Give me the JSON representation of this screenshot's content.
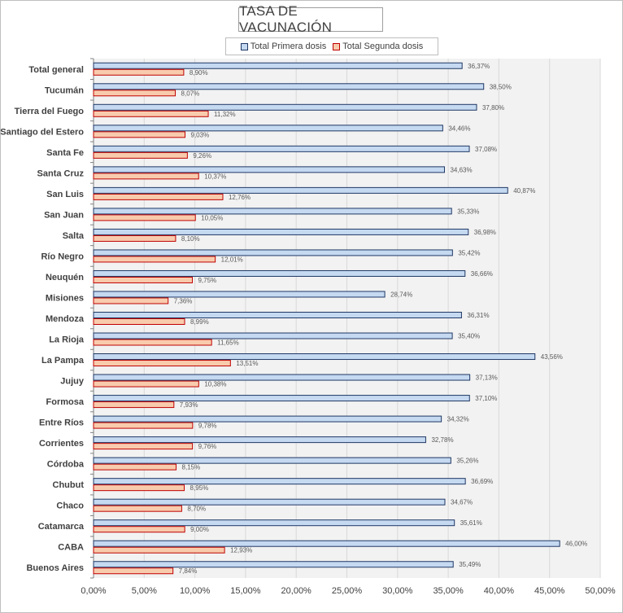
{
  "chart_data": {
    "type": "bar",
    "orientation": "horizontal",
    "title": "TASA DE VACUNACIÓN",
    "categories": [
      "Total general",
      "Tucumán",
      "Tierra del Fuego",
      "Santiago del Estero",
      "Santa Fe",
      "Santa Cruz",
      "San Luis",
      "San Juan",
      "Salta",
      "Río Negro",
      "Neuquén",
      "Misiones",
      "Mendoza",
      "La Rioja",
      "La Pampa",
      "Jujuy",
      "Formosa",
      "Entre Ríos",
      "Corrientes",
      "Córdoba",
      "Chubut",
      "Chaco",
      "Catamarca",
      "CABA",
      "Buenos Aires"
    ],
    "series": [
      {
        "name": "Total Primera dosis",
        "color": "#c5d9f1",
        "border": "#1f3864",
        "values": [
          36.37,
          38.5,
          37.8,
          34.46,
          37.08,
          34.63,
          40.87,
          35.33,
          36.98,
          35.42,
          36.66,
          28.74,
          36.31,
          35.4,
          43.56,
          37.13,
          37.1,
          34.32,
          32.78,
          35.26,
          36.69,
          34.67,
          35.61,
          46.0,
          35.49
        ],
        "labels": [
          "36,37%",
          "38,50%",
          "37,80%",
          "34,46%",
          "37,08%",
          "34,63%",
          "40,87%",
          "35,33%",
          "36,98%",
          "35,42%",
          "36,66%",
          "28,74%",
          "36,31%",
          "35,40%",
          "43,56%",
          "37,13%",
          "37,10%",
          "34,32%",
          "32,78%",
          "35,26%",
          "36,69%",
          "34,67%",
          "35,61%",
          "46,00%",
          "35,49%"
        ]
      },
      {
        "name": "Total Segunda dosis",
        "color": "#f8cbad",
        "border": "#c00000",
        "values": [
          8.9,
          8.07,
          11.32,
          9.03,
          9.26,
          10.37,
          12.76,
          10.05,
          8.1,
          12.01,
          9.75,
          7.36,
          8.99,
          11.65,
          13.51,
          10.38,
          7.93,
          9.78,
          9.76,
          8.15,
          8.95,
          8.7,
          9.0,
          12.93,
          7.84
        ],
        "labels": [
          "8,90%",
          "8,07%",
          "11,32%",
          "9,03%",
          "9,26%",
          "10,37%",
          "12,76%",
          "10,05%",
          "8,10%",
          "12,01%",
          "9,75%",
          "7,36%",
          "8,99%",
          "11,65%",
          "13,51%",
          "10,38%",
          "7,93%",
          "9,78%",
          "9,76%",
          "8,15%",
          "8,95%",
          "8,70%",
          "9,00%",
          "12,93%",
          "7,84%"
        ]
      }
    ],
    "xlim": [
      0,
      50
    ],
    "xticks": [
      0,
      5,
      10,
      15,
      20,
      25,
      30,
      35,
      40,
      45,
      50
    ],
    "xtick_labels": [
      "0,00%",
      "5,00%",
      "10,00%",
      "15,00%",
      "20,00%",
      "25,00%",
      "30,00%",
      "35,00%",
      "40,00%",
      "45,00%",
      "50,00%"
    ],
    "grid": true,
    "legend": "top",
    "plot_background": "#f2f2f2"
  }
}
